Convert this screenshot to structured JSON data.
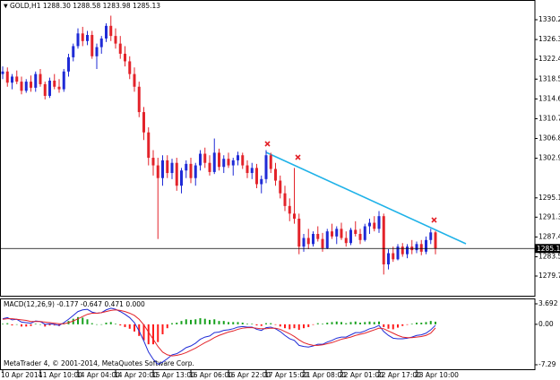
{
  "chart_data": [
    {
      "type": "candlestick",
      "header": "GOLD,H1 1288.30 1288.58 1283.98 1285.13",
      "footer": "MetaTrader 4, © 2001-2014, MetaQuotes Software Corp.",
      "categories": [
        "10 Apr 2014",
        null,
        null,
        null,
        null,
        null,
        null,
        null,
        "11 Apr 10:00",
        null,
        null,
        null,
        null,
        null,
        null,
        null,
        "14 Apr 04:00",
        null,
        null,
        null,
        null,
        null,
        null,
        null,
        "14 Apr 20:00",
        null,
        null,
        null,
        null,
        null,
        null,
        null,
        "15 Apr 13:00",
        null,
        null,
        null,
        null,
        null,
        null,
        null,
        "16 Apr 06:00",
        null,
        null,
        null,
        null,
        null,
        null,
        null,
        "16 Apr 22:00",
        null,
        null,
        null,
        null,
        null,
        null,
        null,
        "17 Apr 15:00",
        null,
        null,
        null,
        null,
        null,
        null,
        null,
        "21 Apr 08:00",
        null,
        null,
        null,
        null,
        null,
        null,
        null,
        "22 Apr 01:00",
        null,
        null,
        null,
        null,
        null,
        null,
        null,
        "22 Apr 17:00",
        null,
        null,
        null,
        null,
        null,
        null,
        null,
        "23 Apr 10:00",
        null,
        null,
        null,
        null
      ],
      "ohlc": [
        [
          1319.5,
          1321.0,
          1318.5,
          1320.0
        ],
        [
          1320.0,
          1320.8,
          1317.0,
          1317.8
        ],
        [
          1317.8,
          1319.5,
          1316.5,
          1319.0
        ],
        [
          1319.0,
          1320.2,
          1317.5,
          1318.0
        ],
        [
          1318.0,
          1319.0,
          1315.5,
          1316.2
        ],
        [
          1316.2,
          1318.5,
          1315.8,
          1318.0
        ],
        [
          1318.0,
          1319.2,
          1316.0,
          1316.8
        ],
        [
          1316.8,
          1320.0,
          1316.0,
          1319.5
        ],
        [
          1319.5,
          1320.5,
          1317.0,
          1317.5
        ],
        [
          1317.5,
          1318.0,
          1314.5,
          1315.2
        ],
        [
          1315.2,
          1318.8,
          1314.8,
          1318.2
        ],
        [
          1318.2,
          1319.5,
          1316.5,
          1317.0
        ],
        [
          1317.0,
          1318.5,
          1315.8,
          1316.5
        ],
        [
          1316.5,
          1320.5,
          1316.0,
          1320.0
        ],
        [
          1320.0,
          1323.5,
          1319.0,
          1322.8
        ],
        [
          1322.8,
          1325.5,
          1322.0,
          1325.0
        ],
        [
          1325.0,
          1328.5,
          1324.5,
          1327.5
        ],
        [
          1327.5,
          1328.8,
          1325.0,
          1326.0
        ],
        [
          1326.0,
          1328.0,
          1325.2,
          1327.2
        ],
        [
          1327.2,
          1328.0,
          1322.5,
          1323.0
        ],
        [
          1323.0,
          1325.5,
          1320.5,
          1324.8
        ],
        [
          1324.8,
          1327.0,
          1323.5,
          1326.5
        ],
        [
          1326.5,
          1329.5,
          1325.8,
          1329.0
        ],
        [
          1329.0,
          1331.0,
          1326.0,
          1327.0
        ],
        [
          1327.0,
          1328.5,
          1324.5,
          1325.5
        ],
        [
          1325.5,
          1327.0,
          1322.5,
          1323.5
        ],
        [
          1323.5,
          1325.0,
          1321.0,
          1322.0
        ],
        [
          1322.0,
          1323.0,
          1318.5,
          1319.5
        ],
        [
          1319.5,
          1320.8,
          1316.0,
          1317.0
        ],
        [
          1317.0,
          1318.0,
          1311.0,
          1312.0
        ],
        [
          1312.0,
          1313.0,
          1306.5,
          1308.0
        ],
        [
          1308.0,
          1309.0,
          1301.5,
          1303.0
        ],
        [
          1303.0,
          1304.5,
          1299.5,
          1301.5
        ],
        [
          1301.5,
          1303.0,
          1287.0,
          1299.0
        ],
        [
          1299.0,
          1303.5,
          1297.5,
          1302.5
        ],
        [
          1302.5,
          1303.5,
          1299.0,
          1300.0
        ],
        [
          1300.0,
          1302.8,
          1298.8,
          1302.0
        ],
        [
          1302.0,
          1303.0,
          1296.5,
          1297.5
        ],
        [
          1297.5,
          1301.0,
          1296.0,
          1300.5
        ],
        [
          1300.5,
          1302.5,
          1299.0,
          1301.8
        ],
        [
          1301.8,
          1303.0,
          1298.0,
          1299.0
        ],
        [
          1299.0,
          1302.0,
          1297.5,
          1301.5
        ],
        [
          1301.5,
          1304.5,
          1300.5,
          1303.8
        ],
        [
          1303.8,
          1305.0,
          1301.0,
          1302.0
        ],
        [
          1302.0,
          1303.5,
          1299.5,
          1300.2
        ],
        [
          1300.2,
          1306.8,
          1299.8,
          1304.0
        ],
        [
          1304.0,
          1304.8,
          1300.5,
          1301.2
        ],
        [
          1301.2,
          1303.5,
          1300.0,
          1302.8
        ],
        [
          1302.8,
          1304.0,
          1301.0,
          1301.5
        ],
        [
          1301.5,
          1303.0,
          1299.5,
          1302.5
        ],
        [
          1302.5,
          1304.2,
          1301.5,
          1303.5
        ],
        [
          1303.5,
          1304.0,
          1300.8,
          1301.5
        ],
        [
          1301.5,
          1302.5,
          1299.0,
          1300.0
        ],
        [
          1300.0,
          1302.0,
          1298.8,
          1301.0
        ],
        [
          1301.0,
          1301.8,
          1297.0,
          1297.8
        ],
        [
          1297.8,
          1299.5,
          1296.0,
          1298.8
        ],
        [
          1298.8,
          1304.5,
          1298.0,
          1303.5
        ],
        [
          1303.5,
          1304.0,
          1300.0,
          1300.8
        ],
        [
          1300.8,
          1302.0,
          1297.5,
          1298.5
        ],
        [
          1298.5,
          1299.5,
          1295.0,
          1296.0
        ],
        [
          1296.0,
          1297.5,
          1292.5,
          1293.5
        ],
        [
          1293.5,
          1295.0,
          1290.5,
          1292.0
        ],
        [
          1292.0,
          1301.0,
          1290.0,
          1291.0
        ],
        [
          1291.0,
          1292.0,
          1284.0,
          1285.5
        ],
        [
          1285.5,
          1288.0,
          1284.5,
          1287.2
        ],
        [
          1287.2,
          1289.0,
          1285.0,
          1286.0
        ],
        [
          1286.0,
          1288.5,
          1285.5,
          1288.0
        ],
        [
          1288.0,
          1289.5,
          1286.5,
          1287.0
        ],
        [
          1287.0,
          1288.2,
          1284.5,
          1285.2
        ],
        [
          1285.2,
          1289.0,
          1285.0,
          1288.5
        ],
        [
          1288.5,
          1290.0,
          1287.0,
          1287.5
        ],
        [
          1287.5,
          1289.5,
          1286.0,
          1289.0
        ],
        [
          1289.0,
          1290.2,
          1286.8,
          1287.2
        ],
        [
          1287.2,
          1288.5,
          1285.5,
          1286.2
        ],
        [
          1286.2,
          1289.2,
          1285.8,
          1288.8
        ],
        [
          1288.8,
          1290.5,
          1287.5,
          1288.0
        ],
        [
          1288.0,
          1289.0,
          1286.0,
          1286.8
        ],
        [
          1286.8,
          1290.0,
          1286.5,
          1289.5
        ],
        [
          1289.5,
          1291.0,
          1288.0,
          1290.2
        ],
        [
          1290.2,
          1291.5,
          1288.5,
          1289.0
        ],
        [
          1289.0,
          1292.5,
          1288.2,
          1291.5
        ],
        [
          1291.5,
          1292.0,
          1280.0,
          1282.0
        ],
        [
          1282.0,
          1285.0,
          1281.0,
          1284.2
        ],
        [
          1284.2,
          1285.5,
          1282.5,
          1283.0
        ],
        [
          1283.0,
          1286.0,
          1282.8,
          1285.5
        ],
        [
          1285.5,
          1286.2,
          1283.5,
          1284.0
        ],
        [
          1284.0,
          1286.0,
          1283.2,
          1285.5
        ],
        [
          1285.5,
          1286.8,
          1284.0,
          1284.8
        ],
        [
          1284.8,
          1286.5,
          1284.2,
          1286.0
        ],
        [
          1286.0,
          1286.8,
          1283.8,
          1284.5
        ],
        [
          1284.5,
          1287.5,
          1284.0,
          1286.8
        ],
        [
          1286.8,
          1289.0,
          1286.0,
          1288.3
        ],
        [
          1288.3,
          1288.58,
          1283.98,
          1285.13
        ]
      ],
      "up_color": "#1f2bd6",
      "down_color": "#e3232a",
      "current_price": 1285.13,
      "ylim": [
        1275.64,
        1333.91
      ],
      "yticks": [
        {
          "value": 1330.2,
          "label": "1330.20"
        },
        {
          "value": 1326.3,
          "label": "1326.30"
        },
        {
          "value": 1322.4,
          "label": "1322.40"
        },
        {
          "value": 1318.5,
          "label": "1318.50"
        },
        {
          "value": 1314.6,
          "label": "1314.60"
        },
        {
          "value": 1310.7,
          "label": "1310.70"
        },
        {
          "value": 1306.8,
          "label": "1306.80"
        },
        {
          "value": 1302.9,
          "label": "1302.90"
        },
        {
          "value": 1295.1,
          "label": "1295.10"
        },
        {
          "value": 1291.3,
          "label": "1291.30"
        },
        {
          "value": 1287.4,
          "label": "1287.40"
        },
        {
          "value": 1283.5,
          "label": "1283.50"
        },
        {
          "value": 1279.7,
          "label": "1279.70"
        }
      ]
    },
    {
      "type": "macd",
      "header": "MACD(12,26,9) -0.177 -0.647 0.471 0.000",
      "ylim": [
        -8.1,
        4.5
      ],
      "yticks": [
        3.692,
        {
          "value": 0,
          "label": "0.00"
        },
        -7.29
      ],
      "histogram": {
        "up_color": "#16a01c",
        "down_color": "#ff1a1a",
        "values": [
          0.1,
          0.2,
          -0.2,
          0.0,
          -0.4,
          -0.4,
          -0.3,
          0.1,
          0.0,
          -0.4,
          -0.2,
          -0.2,
          -0.3,
          0.2,
          0.6,
          1.0,
          1.3,
          1.2,
          0.9,
          0.2,
          0.0,
          0.0,
          0.3,
          0.4,
          0.1,
          -0.2,
          -0.5,
          -0.8,
          -1.3,
          -2.1,
          -2.9,
          -3.6,
          -3.6,
          -3.2,
          -1.8,
          -0.7,
          0.2,
          0.3,
          0.6,
          0.9,
          0.8,
          0.9,
          1.1,
          1.0,
          0.8,
          0.9,
          0.6,
          0.6,
          0.4,
          0.4,
          0.4,
          0.3,
          0.1,
          0.1,
          -0.2,
          -0.3,
          0.2,
          0.2,
          -0.1,
          -0.4,
          -0.7,
          -0.9,
          -0.7,
          -1.0,
          -0.7,
          -0.5,
          -0.1,
          0.2,
          0.1,
          0.3,
          0.4,
          0.5,
          0.4,
          0.2,
          0.4,
          0.5,
          0.3,
          0.4,
          0.5,
          0.4,
          0.5,
          -0.5,
          -0.8,
          -0.9,
          -0.6,
          -0.3,
          -0.1,
          0.1,
          0.3,
          0.3,
          0.4,
          0.6,
          0.471
        ]
      },
      "series": [
        {
          "color": "#1f2bd6",
          "values": [
            1.0,
            1.2,
            0.8,
            0.9,
            0.4,
            0.3,
            0.2,
            0.6,
            0.5,
            0.0,
            0.1,
            0.0,
            -0.2,
            0.3,
            0.9,
            1.6,
            2.3,
            2.6,
            2.7,
            2.2,
            2.0,
            2.1,
            2.6,
            2.9,
            2.7,
            2.3,
            1.8,
            1.2,
            0.3,
            -1.2,
            -3.0,
            -5.0,
            -6.3,
            -7.2,
            -6.8,
            -6.2,
            -5.5,
            -5.3,
            -4.8,
            -4.2,
            -3.9,
            -3.4,
            -2.7,
            -2.3,
            -2.1,
            -1.5,
            -1.4,
            -1.1,
            -1.0,
            -0.8,
            -0.5,
            -0.4,
            -0.5,
            -0.5,
            -0.9,
            -1.1,
            -0.6,
            -0.5,
            -0.8,
            -1.3,
            -2.0,
            -2.6,
            -2.9,
            -3.8,
            -4.0,
            -4.1,
            -3.9,
            -3.6,
            -3.6,
            -3.2,
            -2.9,
            -2.5,
            -2.3,
            -2.3,
            -1.9,
            -1.5,
            -1.5,
            -1.2,
            -0.8,
            -0.6,
            -0.2,
            -1.3,
            -2.0,
            -2.5,
            -2.6,
            -2.6,
            -2.5,
            -2.3,
            -2.0,
            -1.9,
            -1.6,
            -1.0,
            -0.177
          ]
        },
        {
          "color": "#e3232a",
          "values": [
            0.9,
            1.0,
            1.0,
            0.9,
            0.8,
            0.7,
            0.5,
            0.5,
            0.5,
            0.4,
            0.3,
            0.2,
            0.1,
            0.1,
            0.3,
            0.6,
            1.0,
            1.4,
            1.8,
            2.0,
            2.0,
            2.1,
            2.3,
            2.5,
            2.6,
            2.5,
            2.3,
            2.0,
            1.6,
            0.9,
            -0.1,
            -1.4,
            -2.7,
            -4.0,
            -5.0,
            -5.5,
            -5.7,
            -5.6,
            -5.4,
            -5.1,
            -4.7,
            -4.3,
            -3.8,
            -3.3,
            -2.9,
            -2.4,
            -2.0,
            -1.7,
            -1.4,
            -1.2,
            -0.9,
            -0.7,
            -0.6,
            -0.6,
            -0.7,
            -0.8,
            -0.8,
            -0.7,
            -0.7,
            -0.9,
            -1.3,
            -1.7,
            -2.2,
            -2.8,
            -3.3,
            -3.6,
            -3.8,
            -3.8,
            -3.7,
            -3.5,
            -3.3,
            -3.0,
            -2.7,
            -2.5,
            -2.3,
            -2.0,
            -1.8,
            -1.6,
            -1.3,
            -1.0,
            -0.7,
            -0.8,
            -1.2,
            -1.6,
            -2.0,
            -2.3,
            -2.4,
            -2.4,
            -2.3,
            -2.2,
            -2.0,
            -1.6,
            -0.647
          ]
        }
      ]
    }
  ]
}
